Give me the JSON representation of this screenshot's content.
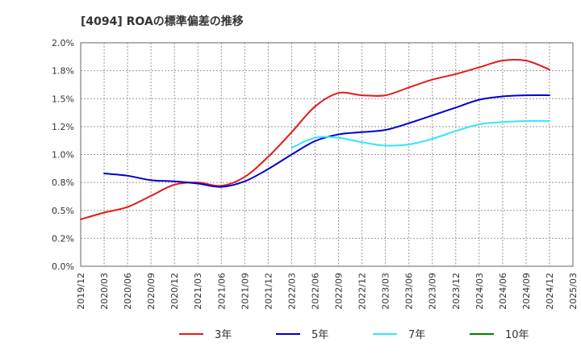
{
  "chart_data": {
    "type": "line",
    "title": "[4094]  ROAの標準偏差の推移",
    "xlabel": "",
    "ylabel": "",
    "ylim": [
      0,
      2.0
    ],
    "y_ticks": [
      0.0,
      0.25,
      0.5,
      0.75,
      1.0,
      1.25,
      1.5,
      1.75,
      2.0
    ],
    "y_tick_labels": [
      "0.0%",
      "0.2%",
      "0.5%",
      "0.8%",
      "1.0%",
      "1.2%",
      "1.5%",
      "1.8%",
      "2.0%"
    ],
    "x_tick_labels": [
      "2019/12",
      "2020/03",
      "2020/06",
      "2020/09",
      "2020/12",
      "2021/03",
      "2021/06",
      "2021/09",
      "2021/12",
      "2022/03",
      "2022/06",
      "2022/09",
      "2022/12",
      "2023/03",
      "2023/06",
      "2023/09",
      "2023/12",
      "2024/03",
      "2024/06",
      "2024/09",
      "2024/12",
      "2025/03"
    ],
    "grid": true,
    "legend_position": "bottom",
    "series": [
      {
        "name": "3年",
        "color": "#e31a1c",
        "x": [
          "2019/12",
          "2020/03",
          "2020/06",
          "2020/09",
          "2020/12",
          "2021/03",
          "2021/06",
          "2021/09",
          "2021/12",
          "2022/03",
          "2022/06",
          "2022/09",
          "2022/12",
          "2023/03",
          "2023/06",
          "2023/09",
          "2023/12",
          "2024/03",
          "2024/06",
          "2024/09",
          "2024/12"
        ],
        "values": [
          0.42,
          0.48,
          0.53,
          0.63,
          0.73,
          0.75,
          0.72,
          0.8,
          0.98,
          1.2,
          1.43,
          1.55,
          1.53,
          1.53,
          1.6,
          1.67,
          1.72,
          1.78,
          1.84,
          1.84,
          1.76
        ]
      },
      {
        "name": "5年",
        "color": "#0000cc",
        "x": [
          "2020/03",
          "2020/06",
          "2020/09",
          "2020/12",
          "2021/03",
          "2021/06",
          "2021/09",
          "2021/12",
          "2022/03",
          "2022/06",
          "2022/09",
          "2022/12",
          "2023/03",
          "2023/06",
          "2023/09",
          "2023/12",
          "2024/03",
          "2024/06",
          "2024/09",
          "2024/12"
        ],
        "values": [
          0.83,
          0.81,
          0.77,
          0.76,
          0.74,
          0.71,
          0.76,
          0.87,
          1.0,
          1.12,
          1.18,
          1.2,
          1.22,
          1.28,
          1.35,
          1.42,
          1.49,
          1.52,
          1.53,
          1.53
        ]
      },
      {
        "name": "7年",
        "color": "#33e5ff",
        "x": [
          "2022/03",
          "2022/06",
          "2022/09",
          "2022/12",
          "2023/03",
          "2023/06",
          "2023/09",
          "2023/12",
          "2024/03",
          "2024/06",
          "2024/09",
          "2024/12"
        ],
        "values": [
          1.06,
          1.15,
          1.15,
          1.11,
          1.08,
          1.09,
          1.14,
          1.21,
          1.27,
          1.29,
          1.3,
          1.3
        ]
      },
      {
        "name": "10年",
        "color": "#008000",
        "x": [],
        "values": []
      }
    ]
  }
}
